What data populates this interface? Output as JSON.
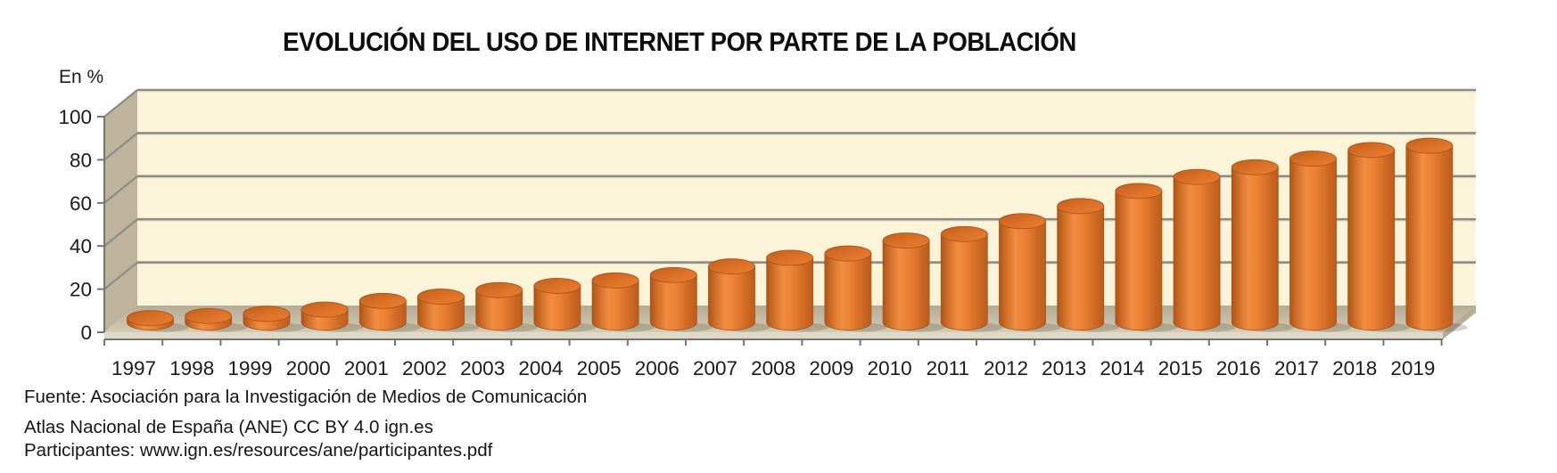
{
  "title": "EVOLUCIÓN DEL USO DE INTERNET POR PARTE DE LA POBLACIÓN",
  "y_axis_unit_label": "En %",
  "footer": {
    "source_line": "Fuente: Asociación para la Investigación de Medios de Comunicación",
    "attribution_line": "Atlas Nacional de España (ANE) CC BY 4.0 ign.es",
    "participants_line": "Participantes: www.ign.es/resources/ane/participantes.pdf"
  },
  "colors": {
    "bar_main": "#E87E2F",
    "bar_dark": "#B05519",
    "bar_light": "#F18C40",
    "bar_outline": "#A6521A",
    "back_wall": "#FBF4D9",
    "side_wall": "#BEB49C",
    "floor_back": "#B3AB94",
    "floor_front": "#D2CBB6",
    "floor_face": "#DFD9C8",
    "floor_side": "#B5AD96",
    "gridline": "#8C8C85",
    "axis": "#75756D",
    "text": "#1B1B1B"
  },
  "chart_data": {
    "type": "bar",
    "subtype": "3d-cylinder",
    "title": "EVOLUCIÓN DEL USO DE INTERNET POR PARTE DE LA POBLACIÓN",
    "ylabel": "En %",
    "xlabel": "",
    "categories": [
      "1997",
      "1998",
      "1999",
      "2000",
      "2001",
      "2002",
      "2003",
      "2004",
      "2005",
      "2006",
      "2007",
      "2008",
      "2009",
      "2010",
      "2011",
      "2012",
      "2013",
      "2014",
      "2015",
      "2016",
      "2017",
      "2018",
      "2019"
    ],
    "values": [
      2,
      3,
      4,
      6,
      10,
      12,
      15,
      17,
      19.5,
      22,
      26,
      30,
      32,
      38,
      41,
      47,
      54,
      61,
      67.5,
      72,
      76,
      80,
      82
    ],
    "ylim": [
      0,
      100
    ],
    "yticks": [
      0,
      20,
      40,
      60,
      80,
      100
    ],
    "grid": true,
    "legend": false
  }
}
